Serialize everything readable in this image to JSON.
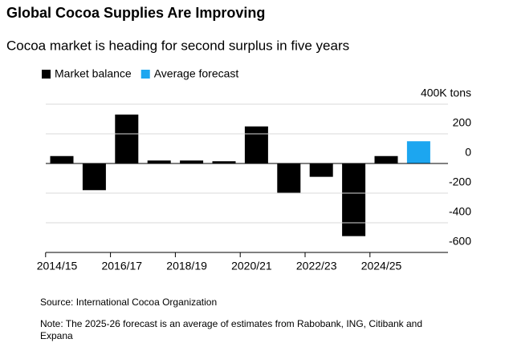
{
  "chart_data": {
    "type": "bar",
    "title": "Global Cocoa Supplies Are Improving",
    "subtitle": "Cocoa market is heading for second surplus in five years",
    "categories": [
      "2014/15",
      null,
      "2016/17",
      null,
      "2018/19",
      null,
      "2020/21",
      null,
      "2022/23",
      null,
      "2024/25",
      null
    ],
    "series": [
      {
        "name": "Market balance",
        "color": "#000000",
        "values": [
          50,
          -180,
          330,
          20,
          20,
          15,
          250,
          -200,
          -90,
          -490,
          50,
          null
        ]
      },
      {
        "name": "Average forecast",
        "color": "#1ca6f0",
        "values": [
          null,
          null,
          null,
          null,
          null,
          null,
          null,
          null,
          null,
          null,
          null,
          150
        ]
      }
    ],
    "ylim": [
      -600,
      400
    ],
    "yticks": [
      -600,
      -400,
      -200,
      0,
      200,
      {
        "value": 400,
        "label": "400K tons"
      }
    ],
    "grid": true,
    "legend": "top-left",
    "source": "Source: International Cocoa Organization",
    "note": [
      "Note: The 2025-26 forecast is an average of estimates from Rabobank, ING, Citibank and",
      "Expana"
    ]
  }
}
